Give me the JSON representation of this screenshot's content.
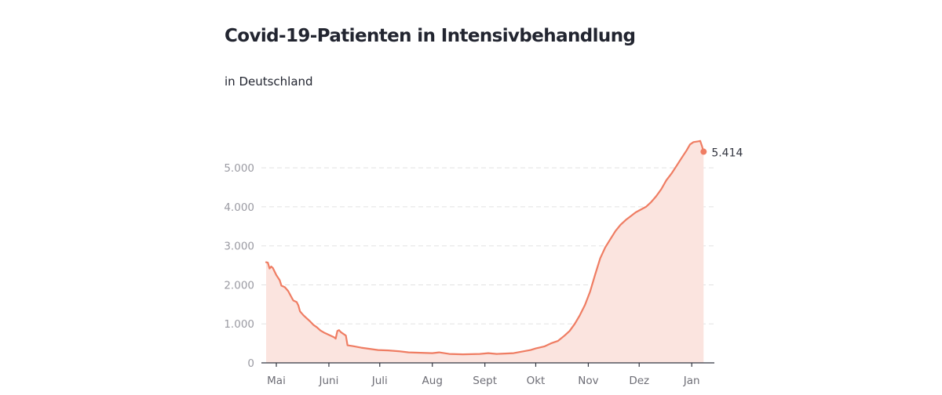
{
  "chart_data": {
    "type": "area",
    "title": "Covid-19-Patienten in Intensivbehandlung",
    "subtitle": "in Deutschland",
    "xlabel": "",
    "ylabel": "",
    "ylim": [
      0,
      5700
    ],
    "y_ticks": [
      {
        "value": 0,
        "label": "0"
      },
      {
        "value": 1000,
        "label": "1.000"
      },
      {
        "value": 2000,
        "label": "2.000"
      },
      {
        "value": 3000,
        "label": "3.000"
      },
      {
        "value": 4000,
        "label": "4.000"
      },
      {
        "value": 5000,
        "label": "5.000"
      }
    ],
    "x_ticks": [
      {
        "day": 0,
        "label": "Mai"
      },
      {
        "day": 31,
        "label": "Juni"
      },
      {
        "day": 61,
        "label": "Juli"
      },
      {
        "day": 92,
        "label": "Aug"
      },
      {
        "day": 123,
        "label": "Sept"
      },
      {
        "day": 153,
        "label": "Okt"
      },
      {
        "day": 184,
        "label": "Nov"
      },
      {
        "day": 214,
        "label": "Dez"
      },
      {
        "day": 245,
        "label": "Jan"
      }
    ],
    "grid": true,
    "series": [
      {
        "color": "#ef7d63",
        "fill": "#fbe4df",
        "points": [
          [
            -6,
            2580
          ],
          [
            -5,
            2570
          ],
          [
            -4,
            2420
          ],
          [
            -3,
            2470
          ],
          [
            -2,
            2430
          ],
          [
            0,
            2250
          ],
          [
            2,
            2120
          ],
          [
            3,
            1980
          ],
          [
            5,
            1940
          ],
          [
            7,
            1840
          ],
          [
            9,
            1680
          ],
          [
            10,
            1600
          ],
          [
            12,
            1560
          ],
          [
            13,
            1470
          ],
          [
            14,
            1320
          ],
          [
            16,
            1220
          ],
          [
            18,
            1140
          ],
          [
            20,
            1060
          ],
          [
            22,
            970
          ],
          [
            24,
            910
          ],
          [
            26,
            830
          ],
          [
            28,
            780
          ],
          [
            30,
            740
          ],
          [
            32,
            700
          ],
          [
            34,
            660
          ],
          [
            35,
            620
          ],
          [
            36,
            820
          ],
          [
            37,
            840
          ],
          [
            38,
            790
          ],
          [
            39,
            760
          ],
          [
            40,
            730
          ],
          [
            41,
            700
          ],
          [
            42,
            450
          ],
          [
            45,
            430
          ],
          [
            50,
            390
          ],
          [
            55,
            360
          ],
          [
            60,
            330
          ],
          [
            66,
            320
          ],
          [
            72,
            300
          ],
          [
            78,
            270
          ],
          [
            85,
            260
          ],
          [
            92,
            250
          ],
          [
            96,
            270
          ],
          [
            99,
            250
          ],
          [
            102,
            230
          ],
          [
            110,
            220
          ],
          [
            120,
            230
          ],
          [
            125,
            250
          ],
          [
            130,
            230
          ],
          [
            135,
            240
          ],
          [
            140,
            250
          ],
          [
            145,
            290
          ],
          [
            150,
            330
          ],
          [
            153,
            370
          ],
          [
            158,
            420
          ],
          [
            162,
            500
          ],
          [
            166,
            560
          ],
          [
            170,
            700
          ],
          [
            173,
            820
          ],
          [
            176,
            1000
          ],
          [
            179,
            1220
          ],
          [
            182,
            1480
          ],
          [
            185,
            1820
          ],
          [
            188,
            2260
          ],
          [
            191,
            2680
          ],
          [
            194,
            2960
          ],
          [
            197,
            3170
          ],
          [
            200,
            3380
          ],
          [
            203,
            3540
          ],
          [
            206,
            3660
          ],
          [
            209,
            3760
          ],
          [
            212,
            3860
          ],
          [
            215,
            3930
          ],
          [
            218,
            4000
          ],
          [
            221,
            4120
          ],
          [
            224,
            4270
          ],
          [
            227,
            4450
          ],
          [
            230,
            4680
          ],
          [
            233,
            4850
          ],
          [
            236,
            5050
          ],
          [
            239,
            5250
          ],
          [
            242,
            5450
          ],
          [
            244,
            5600
          ],
          [
            246,
            5660
          ],
          [
            249,
            5680
          ],
          [
            250,
            5690
          ],
          [
            251,
            5560
          ],
          [
            252,
            5414
          ]
        ],
        "last_value": 5414,
        "last_label": "5.414"
      }
    ]
  }
}
